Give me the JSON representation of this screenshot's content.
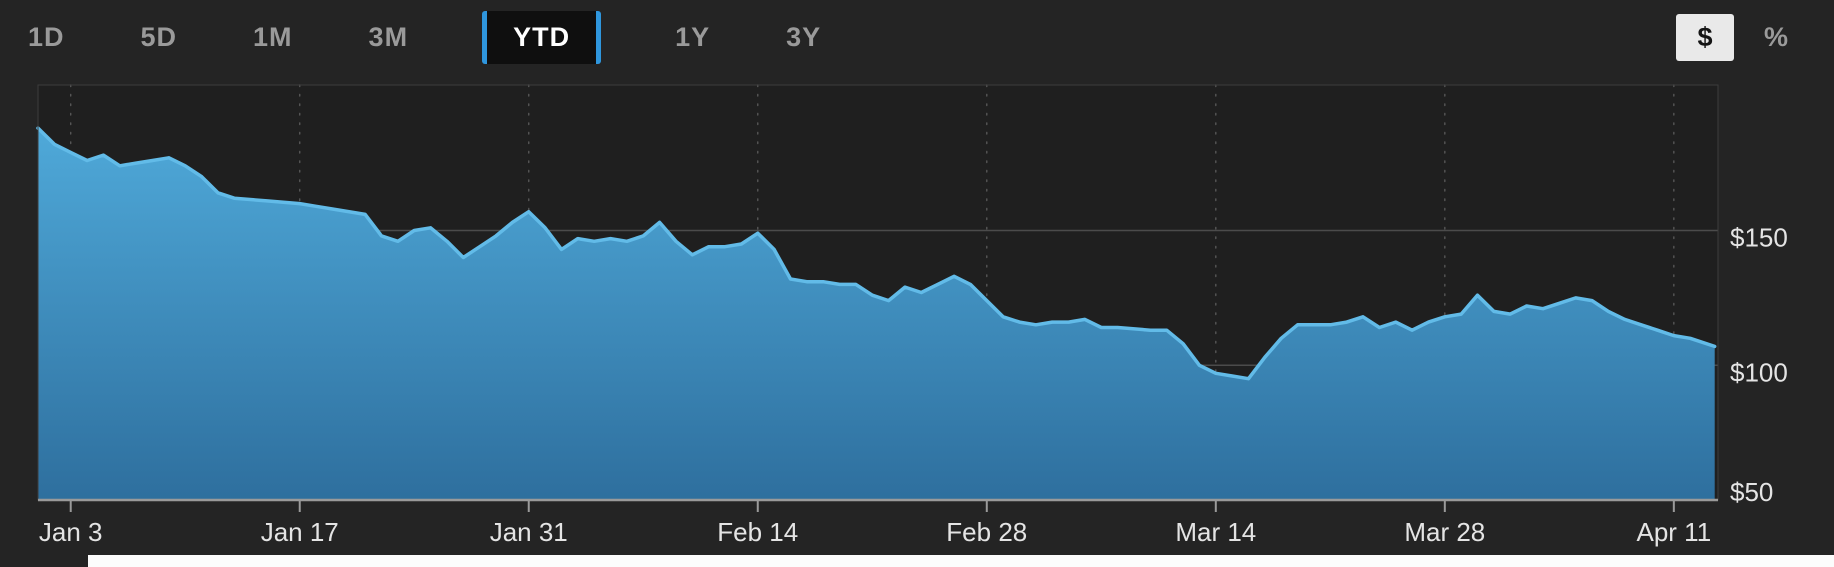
{
  "toolbar": {
    "ranges": [
      {
        "label": "1D",
        "selected": false
      },
      {
        "label": "5D",
        "selected": false
      },
      {
        "label": "1M",
        "selected": false
      },
      {
        "label": "3M",
        "selected": false
      },
      {
        "label": "YTD",
        "selected": true
      },
      {
        "label": "1Y",
        "selected": false
      },
      {
        "label": "3Y",
        "selected": false
      }
    ],
    "unit_toggle": {
      "options": [
        {
          "label": "$",
          "name": "dollar",
          "selected": true
        },
        {
          "label": "%",
          "name": "percent",
          "selected": false
        }
      ]
    }
  },
  "ui_colors": {
    "background": "#242424",
    "accent_blue": "#2f96dd",
    "selected_tab_bg": "#0f0f0f",
    "tab_label": "#9a9a9a",
    "unit_selected_bg": "#e9e9e9",
    "bottom_strip": "#fcfcfc"
  },
  "chart_data": {
    "type": "area",
    "series": [
      {
        "name": "price",
        "points": [
          [
            -2,
            188
          ],
          [
            -1,
            182
          ],
          [
            0,
            179
          ],
          [
            1,
            176
          ],
          [
            2,
            178
          ],
          [
            3,
            174
          ],
          [
            4,
            175
          ],
          [
            5,
            176
          ],
          [
            6,
            177
          ],
          [
            7,
            174
          ],
          [
            8,
            170
          ],
          [
            9,
            164
          ],
          [
            10,
            162
          ],
          [
            12,
            161
          ],
          [
            14,
            160
          ],
          [
            15,
            159
          ],
          [
            16,
            158
          ],
          [
            18,
            156
          ],
          [
            19,
            148
          ],
          [
            20,
            146
          ],
          [
            21,
            150
          ],
          [
            22,
            151
          ],
          [
            23,
            146
          ],
          [
            24,
            140
          ],
          [
            25,
            144
          ],
          [
            26,
            148
          ],
          [
            27,
            153
          ],
          [
            28,
            157
          ],
          [
            29,
            151
          ],
          [
            30,
            143
          ],
          [
            31,
            147
          ],
          [
            32,
            146
          ],
          [
            33,
            147
          ],
          [
            34,
            146
          ],
          [
            35,
            148
          ],
          [
            36,
            153
          ],
          [
            37,
            146
          ],
          [
            38,
            141
          ],
          [
            39,
            144
          ],
          [
            40,
            144
          ],
          [
            41,
            145
          ],
          [
            42,
            149
          ],
          [
            43,
            143
          ],
          [
            44,
            132
          ],
          [
            45,
            131
          ],
          [
            46,
            131
          ],
          [
            47,
            130
          ],
          [
            48,
            130
          ],
          [
            49,
            126
          ],
          [
            50,
            124
          ],
          [
            51,
            129
          ],
          [
            52,
            127
          ],
          [
            53,
            130
          ],
          [
            54,
            133
          ],
          [
            55,
            130
          ],
          [
            56,
            124
          ],
          [
            57,
            118
          ],
          [
            58,
            116
          ],
          [
            59,
            115
          ],
          [
            60,
            116
          ],
          [
            61,
            116
          ],
          [
            62,
            117
          ],
          [
            63,
            114
          ],
          [
            64,
            114
          ],
          [
            66,
            113
          ],
          [
            67,
            113
          ],
          [
            68,
            108
          ],
          [
            69,
            100
          ],
          [
            70,
            97
          ],
          [
            71,
            96
          ],
          [
            72,
            95
          ],
          [
            73,
            103
          ],
          [
            74,
            110
          ],
          [
            75,
            115
          ],
          [
            76,
            115
          ],
          [
            77,
            115
          ],
          [
            78,
            116
          ],
          [
            79,
            118
          ],
          [
            80,
            114
          ],
          [
            81,
            116
          ],
          [
            82,
            113
          ],
          [
            83,
            116
          ],
          [
            84,
            118
          ],
          [
            85,
            119
          ],
          [
            86,
            126
          ],
          [
            87,
            120
          ],
          [
            88,
            119
          ],
          [
            89,
            122
          ],
          [
            90,
            121
          ],
          [
            91,
            123
          ],
          [
            92,
            125
          ],
          [
            93,
            124
          ],
          [
            94,
            120
          ],
          [
            95,
            117
          ],
          [
            96,
            115
          ],
          [
            97,
            113
          ],
          [
            98,
            111
          ],
          [
            99,
            110
          ],
          [
            100.5,
            107
          ]
        ]
      }
    ],
    "x_ticks": {
      "days": [
        0,
        14,
        28,
        42,
        56,
        70,
        84,
        98
      ],
      "labels": [
        "Jan 3",
        "Jan 17",
        "Jan 31",
        "Feb 14",
        "Feb 28",
        "Mar 14",
        "Mar 28",
        "Apr 11"
      ]
    },
    "y_ticks": {
      "values": [
        150,
        100,
        50
      ],
      "labels": [
        "$150",
        "$100",
        "$50"
      ]
    },
    "xlim_days": [
      -2,
      100.7
    ],
    "ylim": [
      50,
      204
    ],
    "grid": "on",
    "legend": "none",
    "colors": {
      "line": "#62bbe8",
      "fill_top": "#4fa9d9",
      "fill_bottom": "#2e6f9e",
      "grid": "#4b4b4b",
      "vgrid": "#575757",
      "axis": "#9a9a9a",
      "label": "#e4e4e4",
      "plot_background": "#1f1f1f"
    }
  }
}
